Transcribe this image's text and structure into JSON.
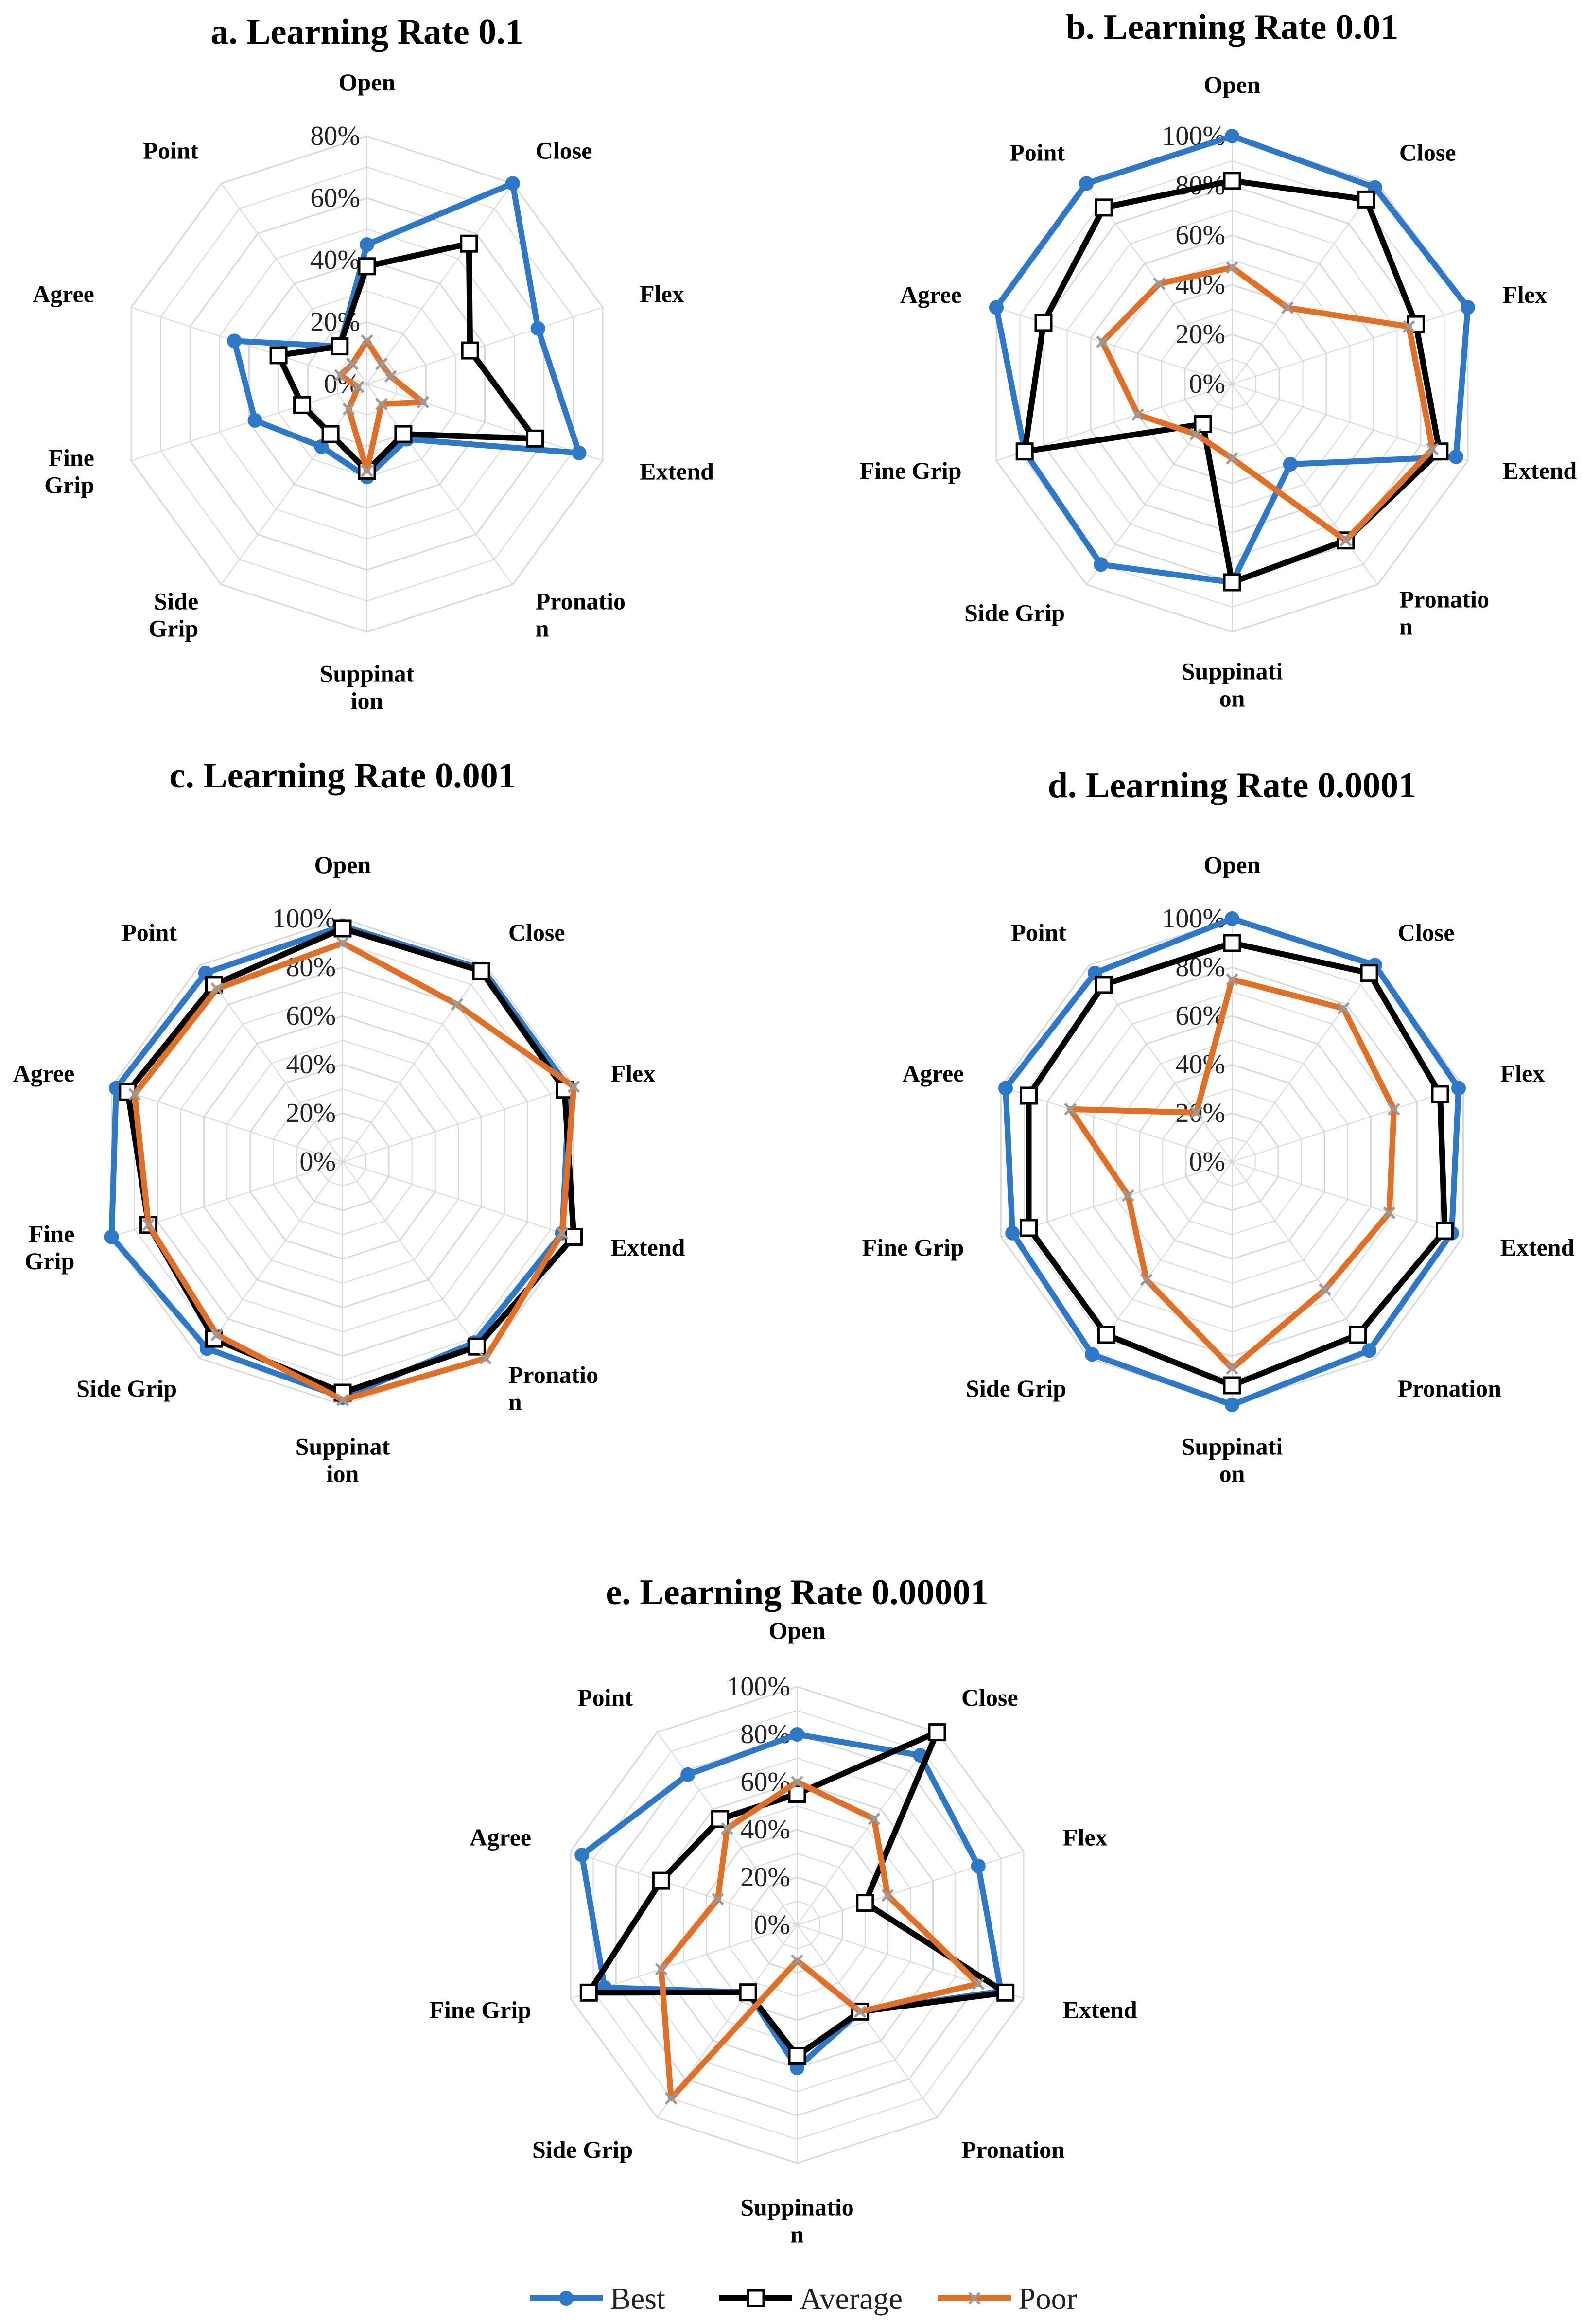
{
  "colors": {
    "best": "#2f78c8",
    "average": "#000000",
    "poor": "#e07028",
    "poor_marker": "#9a9a9a",
    "grid": "#d8d8d8"
  },
  "legend": [
    {
      "label": "Best",
      "key": "best",
      "marker": "circle"
    },
    {
      "label": "Average",
      "key": "average",
      "marker": "square"
    },
    {
      "label": "Poor",
      "key": "poor",
      "marker": "x"
    }
  ],
  "chart_data": [
    {
      "type": "radar",
      "title": "a. Learning Rate 0.1",
      "categories": [
        "Open",
        "Close",
        "Flex",
        "Extend",
        "Pronation",
        "Suppination",
        "Side Grip",
        "Fine Grip",
        "Agree",
        "Point"
      ],
      "category_labels": [
        [
          "Open"
        ],
        [
          "Close"
        ],
        [
          "Flex"
        ],
        [
          "Extend"
        ],
        [
          "Pronatio",
          "n"
        ],
        [
          "Suppinat",
          "ion"
        ],
        [
          "Side",
          "Grip"
        ],
        [
          "Fine",
          "Grip"
        ],
        [
          "Agree"
        ],
        [
          "Point"
        ]
      ],
      "ticks": [
        "0%",
        "20%",
        "40%",
        "60%",
        "80%"
      ],
      "rmax": 80,
      "series": [
        {
          "name": "Best",
          "key": "best",
          "values": [
            45,
            80,
            58,
            72,
            22,
            30,
            25,
            38,
            45,
            15
          ]
        },
        {
          "name": "Average",
          "key": "average",
          "values": [
            38,
            56,
            35,
            57,
            20,
            28,
            20,
            22,
            30,
            15
          ]
        },
        {
          "name": "Poor",
          "key": "poor",
          "values": [
            14,
            8,
            8,
            19,
            8,
            28,
            10,
            3,
            9,
            8
          ]
        }
      ]
    },
    {
      "type": "radar",
      "title": "b. Learning Rate 0.01",
      "categories": [
        "Open",
        "Close",
        "Flex",
        "Extend",
        "Pronation",
        "Suppination",
        "Side Grip",
        "Fine Grip",
        "Agree",
        "Point"
      ],
      "category_labels": [
        [
          "Open"
        ],
        [
          "Close"
        ],
        [
          "Flex"
        ],
        [
          "Extend"
        ],
        [
          "Pronatio",
          "n"
        ],
        [
          "Suppinati",
          "on"
        ],
        [
          "Side Grip"
        ],
        [
          "Fine Grip"
        ],
        [
          "Agree"
        ],
        [
          "Point"
        ]
      ],
      "ticks": [
        "0%",
        "20%",
        "40%",
        "60%",
        "80%",
        "100%"
      ],
      "rmax": 100,
      "series": [
        {
          "name": "Best",
          "key": "best",
          "values": [
            100,
            98,
            100,
            95,
            40,
            80,
            90,
            88,
            100,
            100
          ]
        },
        {
          "name": "Average",
          "key": "average",
          "values": [
            82,
            92,
            78,
            88,
            78,
            80,
            20,
            88,
            80,
            88
          ]
        },
        {
          "name": "Poor",
          "key": "poor",
          "values": [
            47,
            38,
            75,
            85,
            78,
            30,
            25,
            40,
            55,
            50
          ]
        }
      ]
    },
    {
      "type": "radar",
      "title": "c. Learning Rate 0.001",
      "categories": [
        "Open",
        "Close",
        "Flex",
        "Extend",
        "Pronation",
        "Suppination",
        "Side Grip",
        "Fine Grip",
        "Agree",
        "Point"
      ],
      "category_labels": [
        [
          "Open"
        ],
        [
          "Close"
        ],
        [
          "Flex"
        ],
        [
          "Extend"
        ],
        [
          "Pronatio",
          "n"
        ],
        [
          "Suppinat",
          "ion"
        ],
        [
          "Side Grip"
        ],
        [
          "Fine",
          "Grip"
        ],
        [
          "Agree"
        ],
        [
          "Point"
        ]
      ],
      "ticks": [
        "0%",
        "20%",
        "40%",
        "60%",
        "80%",
        "100%"
      ],
      "rmax": 100,
      "series": [
        {
          "name": "Best",
          "key": "best",
          "values": [
            97,
            98,
            98,
            95,
            92,
            97,
            95,
            100,
            98,
            96
          ]
        },
        {
          "name": "Average",
          "key": "average",
          "values": [
            96,
            97,
            96,
            100,
            94,
            95,
            90,
            84,
            93,
            90
          ]
        },
        {
          "name": "Poor",
          "key": "poor",
          "values": [
            90,
            80,
            100,
            95,
            100,
            98,
            88,
            84,
            90,
            88
          ]
        }
      ]
    },
    {
      "type": "radar",
      "title": "d. Learning Rate 0.0001",
      "categories": [
        "Open",
        "Close",
        "Flex",
        "Extend",
        "Pronation",
        "Suppination",
        "Side Grip",
        "Fine Grip",
        "Agree",
        "Point"
      ],
      "category_labels": [
        [
          "Open"
        ],
        [
          "Close"
        ],
        [
          "Flex"
        ],
        [
          "Extend"
        ],
        [
          "Pronation"
        ],
        [
          "Suppinati",
          "on"
        ],
        [
          "Side Grip"
        ],
        [
          "Fine Grip"
        ],
        [
          "Agree"
        ],
        [
          "Point"
        ]
      ],
      "ticks": [
        "0%",
        "20%",
        "40%",
        "60%",
        "80%",
        "100%"
      ],
      "rmax": 100,
      "series": [
        {
          "name": "Best",
          "key": "best",
          "values": [
            100,
            100,
            98,
            95,
            96,
            100,
            98,
            95,
            98,
            96
          ]
        },
        {
          "name": "Average",
          "key": "average",
          "values": [
            90,
            96,
            90,
            92,
            88,
            92,
            88,
            88,
            88,
            90
          ]
        },
        {
          "name": "Poor",
          "key": "poor",
          "values": [
            75,
            78,
            70,
            68,
            65,
            85,
            60,
            45,
            70,
            25
          ]
        }
      ]
    },
    {
      "type": "radar",
      "title": "e. Learning Rate 0.00001",
      "categories": [
        "Open",
        "Close",
        "Flex",
        "Extend",
        "Pronation",
        "Suppination",
        "Side Grip",
        "Fine Grip",
        "Agree",
        "Point"
      ],
      "category_labels": [
        [
          "Open"
        ],
        [
          "Close"
        ],
        [
          "Flex"
        ],
        [
          "Extend"
        ],
        [
          "Pronation"
        ],
        [
          "Suppinatio",
          "n"
        ],
        [
          "Side Grip"
        ],
        [
          "Fine Grip"
        ],
        [
          "Agree"
        ],
        [
          "Point"
        ]
      ],
      "ticks": [
        "0%",
        "20%",
        "40%",
        "60%",
        "80%",
        "100%"
      ],
      "rmax": 100,
      "series": [
        {
          "name": "Best",
          "key": "best",
          "values": [
            80,
            88,
            80,
            90,
            45,
            60,
            35,
            85,
            95,
            78
          ]
        },
        {
          "name": "Average",
          "key": "average",
          "values": [
            55,
            100,
            30,
            92,
            45,
            55,
            35,
            92,
            60,
            55
          ]
        },
        {
          "name": "Poor",
          "key": "poor",
          "values": [
            60,
            55,
            40,
            80,
            45,
            15,
            90,
            60,
            35,
            50
          ]
        }
      ]
    }
  ]
}
